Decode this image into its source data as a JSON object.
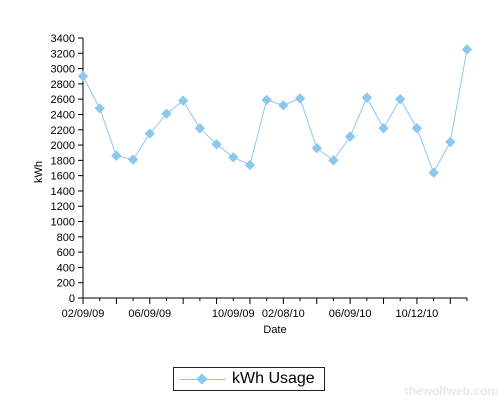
{
  "chart_data": {
    "type": "line",
    "title": "",
    "xlabel": "Date",
    "ylabel": "kWh",
    "ylim": [
      0,
      3400
    ],
    "ytick_step": 200,
    "x_tick_labels": [
      "02/09/09",
      "06/09/09",
      "10/09/09",
      "02/08/10",
      "06/09/10",
      "10/12/10"
    ],
    "x_tick_label_indices": [
      0,
      4,
      9,
      12,
      16,
      20
    ],
    "grid": false,
    "legend": "bottom-center",
    "series": [
      {
        "name": "kWh Usage",
        "color": "#8cc8ee",
        "marker": "diamond",
        "values": [
          2900,
          2480,
          1860,
          1810,
          2150,
          2410,
          2580,
          2220,
          2010,
          1840,
          1740,
          2590,
          2520,
          2610,
          1960,
          1800,
          2110,
          2620,
          2220,
          2600,
          2220,
          1640,
          2040,
          3250
        ]
      }
    ]
  },
  "legend": {
    "label": "kWh Usage"
  },
  "watermark": "thewolfweb.com"
}
